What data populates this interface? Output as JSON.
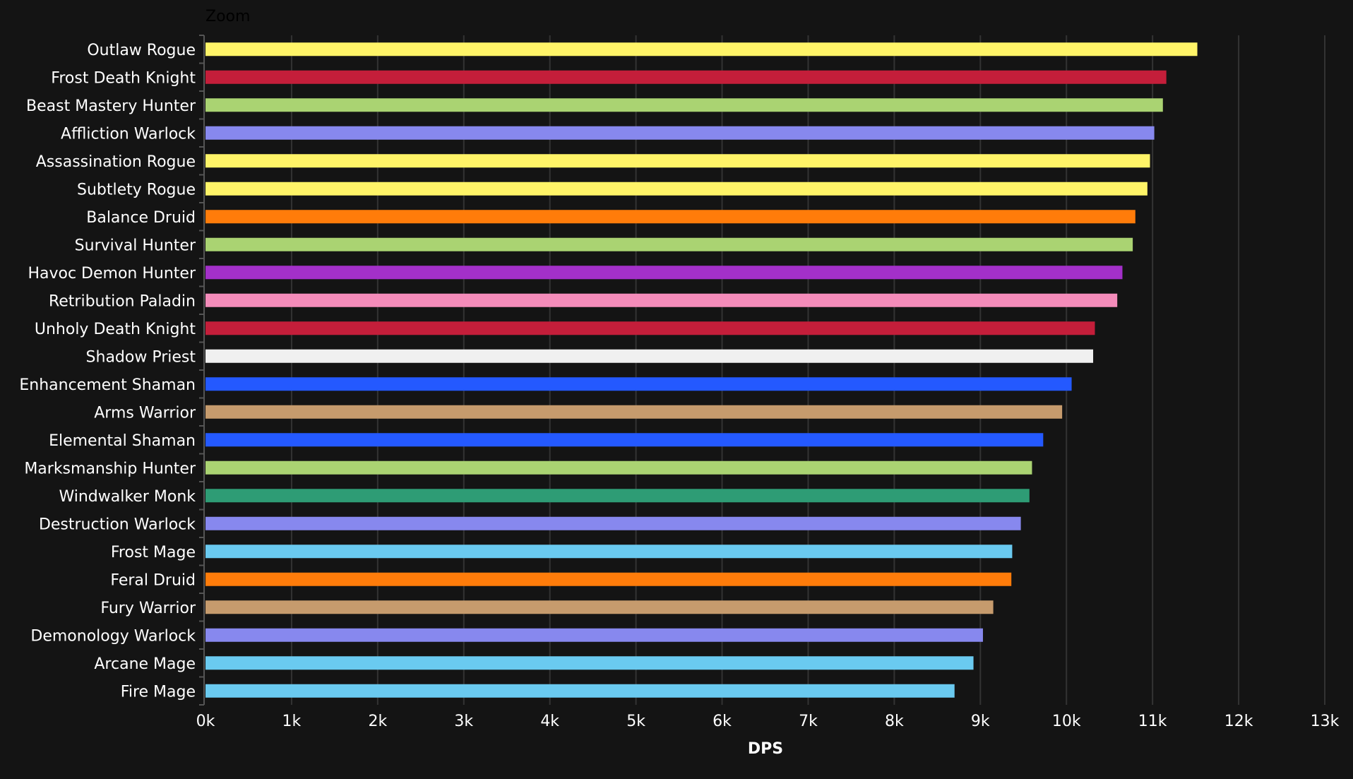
{
  "zoom_button": {
    "label": "Zoom"
  },
  "chart_data": {
    "type": "bar",
    "orientation": "horizontal",
    "xlabel": "DPS",
    "ylabel": "",
    "xlim": [
      0,
      13000
    ],
    "x_ticks": [
      "0k",
      "1k",
      "2k",
      "3k",
      "4k",
      "5k",
      "6k",
      "7k",
      "8k",
      "9k",
      "10k",
      "11k",
      "12k",
      "13k"
    ],
    "grid": true,
    "categories": [
      "Outlaw Rogue",
      "Frost Death Knight",
      "Beast Mastery Hunter",
      "Affliction Warlock",
      "Assassination Rogue",
      "Subtlety Rogue",
      "Balance Druid",
      "Survival Hunter",
      "Havoc Demon Hunter",
      "Retribution Paladin",
      "Unholy Death Knight",
      "Shadow Priest",
      "Enhancement Shaman",
      "Arms Warrior",
      "Elemental Shaman",
      "Marksmanship Hunter",
      "Windwalker Monk",
      "Destruction Warlock",
      "Frost Mage",
      "Feral Druid",
      "Fury Warrior",
      "Demonology Warlock",
      "Arcane Mage",
      "Fire Mage"
    ],
    "values": [
      11520,
      11160,
      11120,
      11020,
      10970,
      10940,
      10800,
      10770,
      10650,
      10590,
      10330,
      10310,
      10060,
      9950,
      9730,
      9600,
      9570,
      9470,
      9370,
      9360,
      9150,
      9030,
      8920,
      8700
    ],
    "colors": [
      "#FFF468",
      "#C41E3A",
      "#AAD372",
      "#8788EE",
      "#FFF468",
      "#FFF468",
      "#FF7C0A",
      "#AAD372",
      "#A330C9",
      "#F48CBA",
      "#C41E3A",
      "#F0F0F0",
      "#2459FF",
      "#C69B6D",
      "#2459FF",
      "#AAD372",
      "#2E9C75",
      "#8788EE",
      "#6ACAF0",
      "#FF7C0A",
      "#C69B6D",
      "#8788EE",
      "#6ACAF0",
      "#6ACAF0"
    ]
  }
}
